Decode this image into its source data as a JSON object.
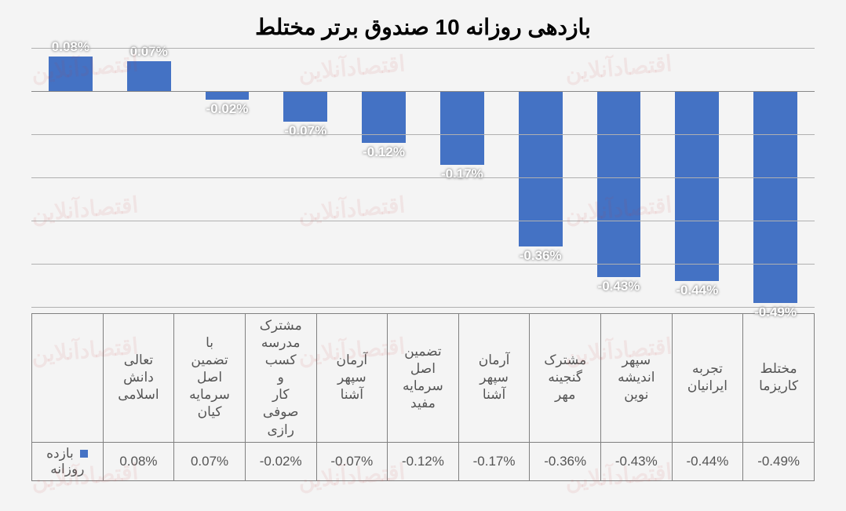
{
  "chart": {
    "type": "bar",
    "title": "بازدهی روزانه 10 صندوق برتر مختلط",
    "title_fontsize": 28,
    "categories": [
      "تعالی دانش اسلامی",
      "با تضمین اصل سرمایه کیان",
      "مشترک مدرسه کسب و کار صوفی رازی",
      "آرمان سپهر آشنا",
      "تضمین اصل سرمایه مفید",
      "آرمان سپهر آشنا",
      "مشترک گنجینه مهر",
      "سپهر اندیشه نوین",
      "تجربه ایرانیان",
      "مختلط کاریزما"
    ],
    "values": [
      0.08,
      0.07,
      -0.02,
      -0.07,
      -0.12,
      -0.17,
      -0.36,
      -0.43,
      -0.44,
      -0.49
    ],
    "value_labels": [
      "0.08%",
      "0.07%",
      "-0.02%",
      "-0.07%",
      "-0.12%",
      "-0.17%",
      "-0.36%",
      "-0.43%",
      "-0.44%",
      "-0.49%"
    ],
    "bar_color": "#4472c4",
    "ylim": [
      -0.5,
      0.1
    ],
    "gridline_values": [
      0.1,
      0.0,
      -0.1,
      -0.2,
      -0.3,
      -0.4,
      -0.5
    ],
    "baseline": 0.0,
    "grid_color": "#b0b0b0",
    "background_color": "#f4f4f4",
    "label_fontsize": 17,
    "label_color": "#ffffff",
    "series_name": "بازده روزانه",
    "watermark_text": "اقتصادآنلاین",
    "watermark_color": "rgba(200,50,50,0.08)"
  }
}
